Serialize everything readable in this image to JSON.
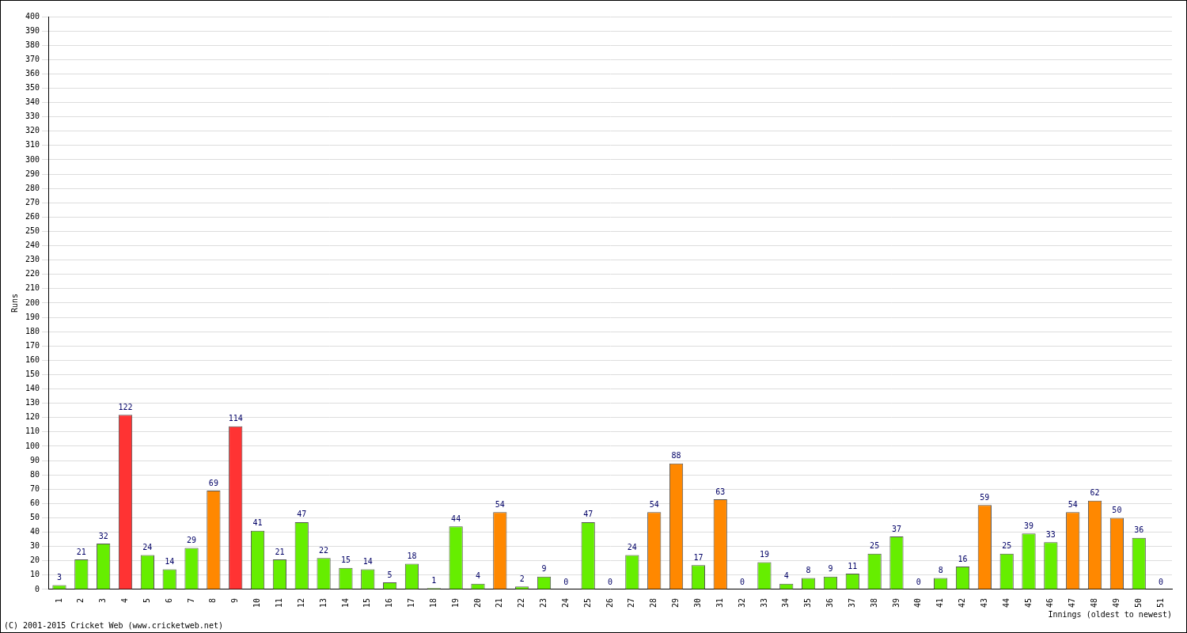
{
  "chart_data": {
    "type": "bar",
    "y_label": "Runs",
    "x_label": "Innings (oldest to newest)",
    "annotations": [
      "(C) 2001-2015 Cricket Web (www.cricketweb.net)"
    ],
    "categories": [
      "1",
      "2",
      "3",
      "4",
      "5",
      "6",
      "7",
      "8",
      "9",
      "10",
      "11",
      "12",
      "13",
      "14",
      "15",
      "16",
      "17",
      "18",
      "19",
      "20",
      "21",
      "22",
      "23",
      "24",
      "25",
      "26",
      "27",
      "28",
      "29",
      "30",
      "31",
      "32",
      "33",
      "34",
      "35",
      "36",
      "37",
      "38",
      "39",
      "40",
      "41",
      "42",
      "43",
      "44",
      "45",
      "46",
      "47",
      "48",
      "49",
      "50",
      "51"
    ],
    "values": [
      3,
      21,
      32,
      122,
      24,
      14,
      29,
      69,
      114,
      41,
      21,
      47,
      22,
      15,
      14,
      5,
      18,
      1,
      44,
      4,
      54,
      2,
      9,
      0,
      47,
      0,
      24,
      54,
      88,
      17,
      63,
      0,
      19,
      4,
      8,
      9,
      11,
      25,
      37,
      0,
      8,
      16,
      59,
      25,
      39,
      33,
      54,
      62,
      50,
      36,
      0
    ],
    "colors": [
      "#66ee00",
      "#66ee00",
      "#66ee00",
      "#ff3333",
      "#66ee00",
      "#66ee00",
      "#66ee00",
      "#ff8800",
      "#ff3333",
      "#66ee00",
      "#66ee00",
      "#66ee00",
      "#66ee00",
      "#66ee00",
      "#66ee00",
      "#66ee00",
      "#66ee00",
      "#66ee00",
      "#66ee00",
      "#66ee00",
      "#ff8800",
      "#66ee00",
      "#66ee00",
      "#66ee00",
      "#66ee00",
      "#66ee00",
      "#66ee00",
      "#ff8800",
      "#ff8800",
      "#66ee00",
      "#ff8800",
      "#66ee00",
      "#66ee00",
      "#66ee00",
      "#66ee00",
      "#66ee00",
      "#66ee00",
      "#66ee00",
      "#66ee00",
      "#66ee00",
      "#66ee00",
      "#66ee00",
      "#ff8800",
      "#66ee00",
      "#66ee00",
      "#66ee00",
      "#ff8800",
      "#ff8800",
      "#ff8800",
      "#66ee00",
      "#66ee00"
    ],
    "ylim": [
      0,
      400
    ],
    "yticks": [
      0,
      10,
      20,
      30,
      40,
      50,
      60,
      70,
      80,
      90,
      100,
      110,
      120,
      130,
      140,
      150,
      160,
      170,
      180,
      190,
      200,
      210,
      220,
      230,
      240,
      250,
      260,
      270,
      280,
      290,
      300,
      310,
      320,
      330,
      340,
      350,
      360,
      370,
      380,
      390,
      400
    ],
    "grid": true,
    "data_labels": true,
    "legend": false
  }
}
